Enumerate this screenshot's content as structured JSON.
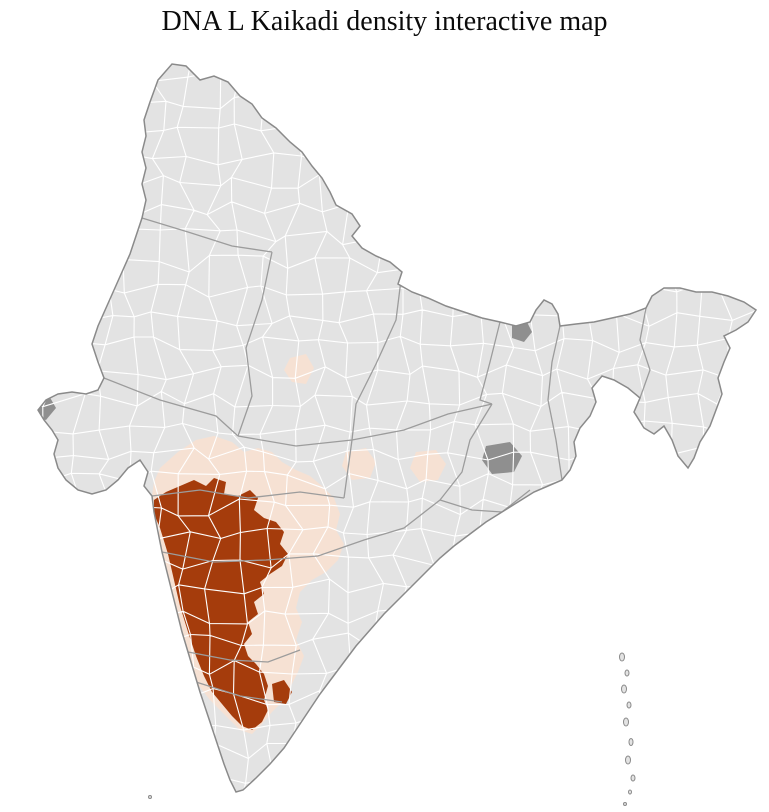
{
  "title": "DNA L Kaikadi density interactive map",
  "map": {
    "colors": {
      "background": "#ffffff",
      "district_fill": "#e3e3e3",
      "district_border": "#ffffff",
      "state_border": "#9c9c9c",
      "country_outline": "#8a8a8a",
      "density_high": "#a53c0c",
      "density_low": "#f6e1d3",
      "no_data_dark": "#8f8f8f"
    }
  }
}
